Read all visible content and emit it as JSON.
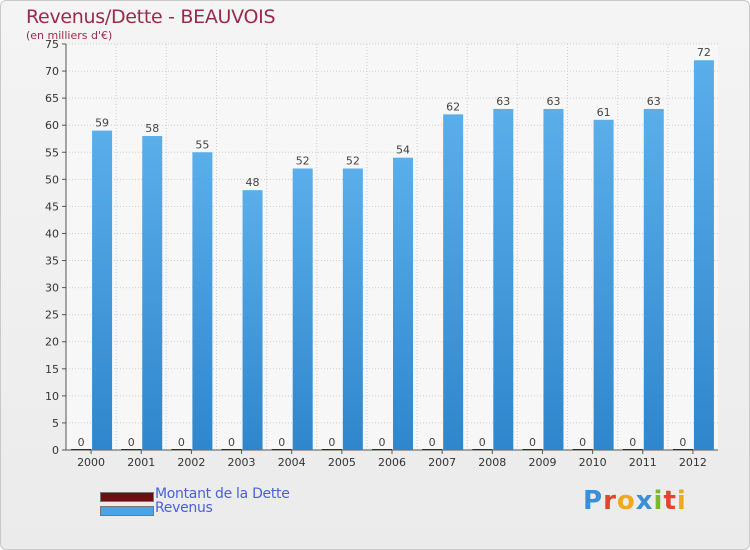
{
  "chart_data": {
    "type": "bar",
    "title": "Revenus/Dette - BEAUVOIS",
    "subtitle": "(en milliers d'€)",
    "categories": [
      "2000",
      "2001",
      "2002",
      "2003",
      "2004",
      "2005",
      "2006",
      "2007",
      "2008",
      "2009",
      "2010",
      "2011",
      "2012"
    ],
    "series": [
      {
        "name": "Montant de la Dette",
        "values": [
          0,
          0,
          0,
          0,
          0,
          0,
          0,
          0,
          0,
          0,
          0,
          0,
          0
        ],
        "color": "#6b0f0f"
      },
      {
        "name": "Revenus",
        "values": [
          59,
          58,
          55,
          48,
          52,
          52,
          54,
          62,
          63,
          63,
          61,
          63,
          72
        ],
        "color": "#4ba3e6"
      }
    ],
    "ylim": [
      0,
      75
    ],
    "yticks": [
      0,
      5,
      10,
      15,
      20,
      25,
      30,
      35,
      40,
      45,
      50,
      55,
      60,
      65,
      70,
      75
    ],
    "grid": true,
    "legend": "bottom-left"
  },
  "logo": {
    "letters": [
      {
        "ch": "P",
        "color": "#3a8fd6"
      },
      {
        "ch": "r",
        "color": "#e0452f"
      },
      {
        "ch": "o",
        "color": "#f0a820"
      },
      {
        "ch": "x",
        "color": "#3a8fd6"
      },
      {
        "ch": "i",
        "color": "#7cb82f"
      },
      {
        "ch": "t",
        "color": "#e0452f"
      },
      {
        "ch": "i",
        "color": "#f0a820"
      }
    ]
  }
}
